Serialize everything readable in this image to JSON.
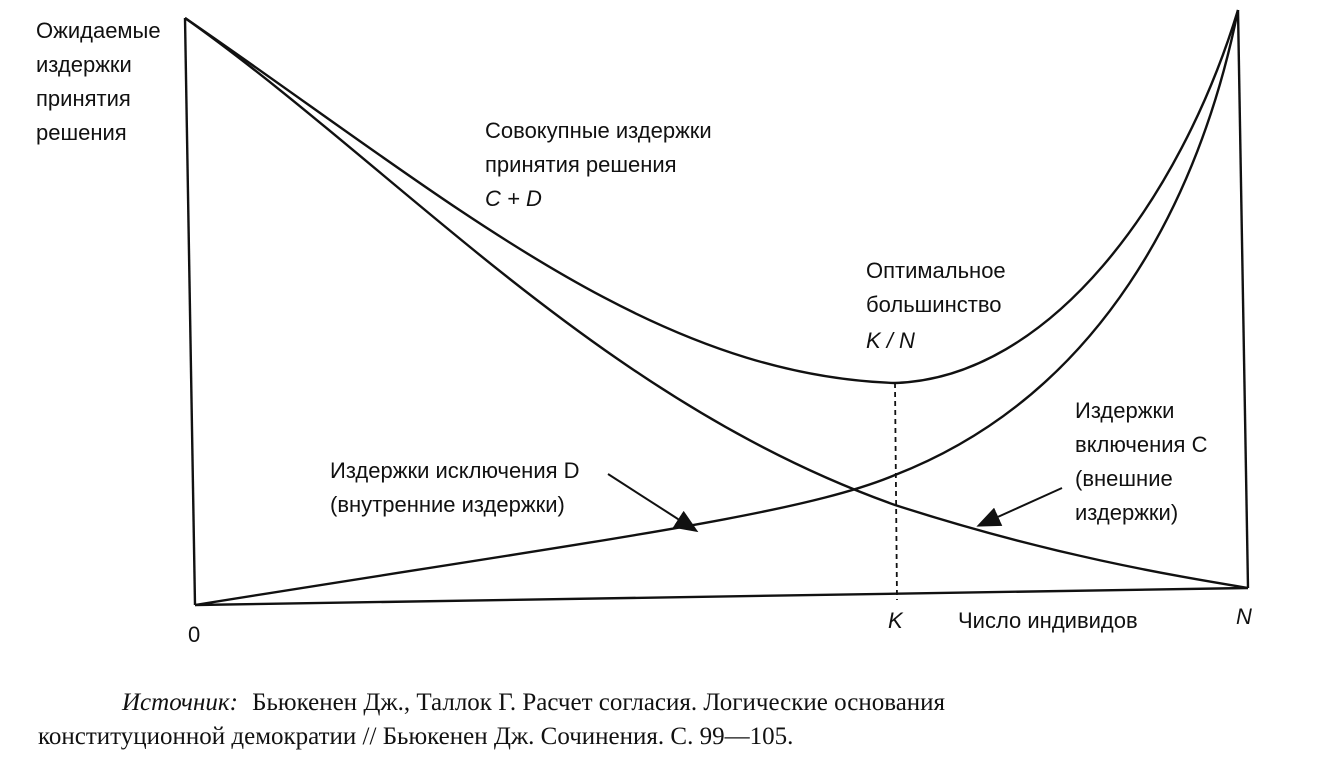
{
  "y_axis_label": [
    "Ожидаемые",
    "издержки",
    "принятия",
    "решения"
  ],
  "total_cost_label": [
    "Совокупные издержки",
    "принятия решения",
    "C + D"
  ],
  "optimum_label": [
    "Оптимальное",
    "большинство",
    "K / N"
  ],
  "inclusion_cost_label": [
    "Издержки",
    "включения C",
    "(внешние",
    "издержки)"
  ],
  "exclusion_cost_label": [
    "Издержки исключения D",
    "(внутренние издержки)"
  ],
  "x_axis": {
    "origin": "0",
    "k": "K",
    "label": "Число индивидов",
    "n": "N"
  },
  "source": {
    "prefix": "Источник:",
    "lines": [
      "Бьюкенен Дж., Таллок Г. Расчет согласия. Логические основания",
      "конституционной демократии // Бьюкенен Дж. Сочинения. С. 99—105."
    ]
  }
}
